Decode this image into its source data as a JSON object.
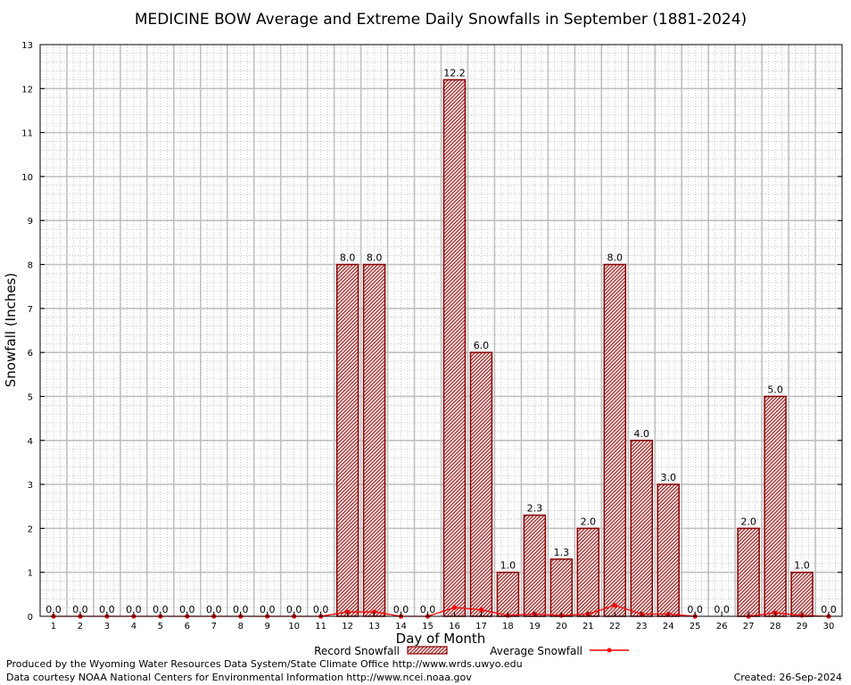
{
  "chart_data": {
    "type": "bar",
    "title": "MEDICINE BOW Average and Extreme Daily Snowfalls in September (1881-2024)",
    "xlabel": "Day of Month",
    "ylabel": "Snowfall (Inches)",
    "ylim": [
      0,
      13
    ],
    "yticks": [
      "0",
      "1",
      "2",
      "3",
      "4",
      "5",
      "6",
      "7",
      "8",
      "9",
      "10",
      "11",
      "12",
      "13"
    ],
    "categories": [
      "1",
      "2",
      "3",
      "4",
      "5",
      "6",
      "7",
      "8",
      "9",
      "10",
      "11",
      "12",
      "13",
      "14",
      "15",
      "16",
      "17",
      "18",
      "19",
      "20",
      "21",
      "22",
      "23",
      "24",
      "25",
      "26",
      "27",
      "28",
      "29",
      "30"
    ],
    "series": [
      {
        "name": "Record Snowfall",
        "values": [
          0.0,
          0.0,
          0.0,
          0.0,
          0.0,
          0.0,
          0.0,
          0.0,
          0.0,
          0.0,
          0.0,
          8.0,
          8.0,
          0.0,
          0.0,
          12.2,
          6.0,
          1.0,
          2.3,
          1.3,
          2.0,
          8.0,
          4.0,
          3.0,
          0.0,
          0.0,
          2.0,
          5.0,
          1.0,
          0.0
        ],
        "labels": [
          "0.0",
          "0.0",
          "0.0",
          "0.0",
          "0.0",
          "0.0",
          "0.0",
          "0.0",
          "0.0",
          "0.0",
          "0.0",
          "8.0",
          "8.0",
          "0.0",
          "0.0",
          "12.2",
          "6.0",
          "1.0",
          "2.3",
          "1.3",
          "2.0",
          "8.0",
          "4.0",
          "3.0",
          "0.0",
          "0.0",
          "2.0",
          "5.0",
          "1.0",
          "0.0"
        ]
      },
      {
        "name": "Average Snowfall",
        "values": [
          0,
          0,
          0,
          0,
          0,
          0,
          0,
          0,
          0,
          0,
          0,
          0.1,
          0.1,
          0,
          0,
          0.2,
          0.15,
          0.02,
          0.05,
          0.02,
          0.05,
          0.25,
          0.05,
          0.05,
          0,
          null,
          0,
          0.08,
          0.02,
          0
        ]
      }
    ],
    "grid": true,
    "legend_position": "bottom-center",
    "colors": {
      "bar_stroke": "#8b0000",
      "bar_fill": "#d9a0a0",
      "line": "#ff0000",
      "major_grid": "#c0c0c0",
      "minor_grid": "#a8a8a8"
    }
  },
  "footer": {
    "produced_by": "Produced by the Wyoming Water Resources Data System/State Climate Office http://www.wrds.uwyo.edu",
    "data_courtesy": "Data courtesy NOAA National Centers for Environmental Information http://www.ncei.noaa.gov",
    "created": "Created:  26-Sep-2024"
  }
}
